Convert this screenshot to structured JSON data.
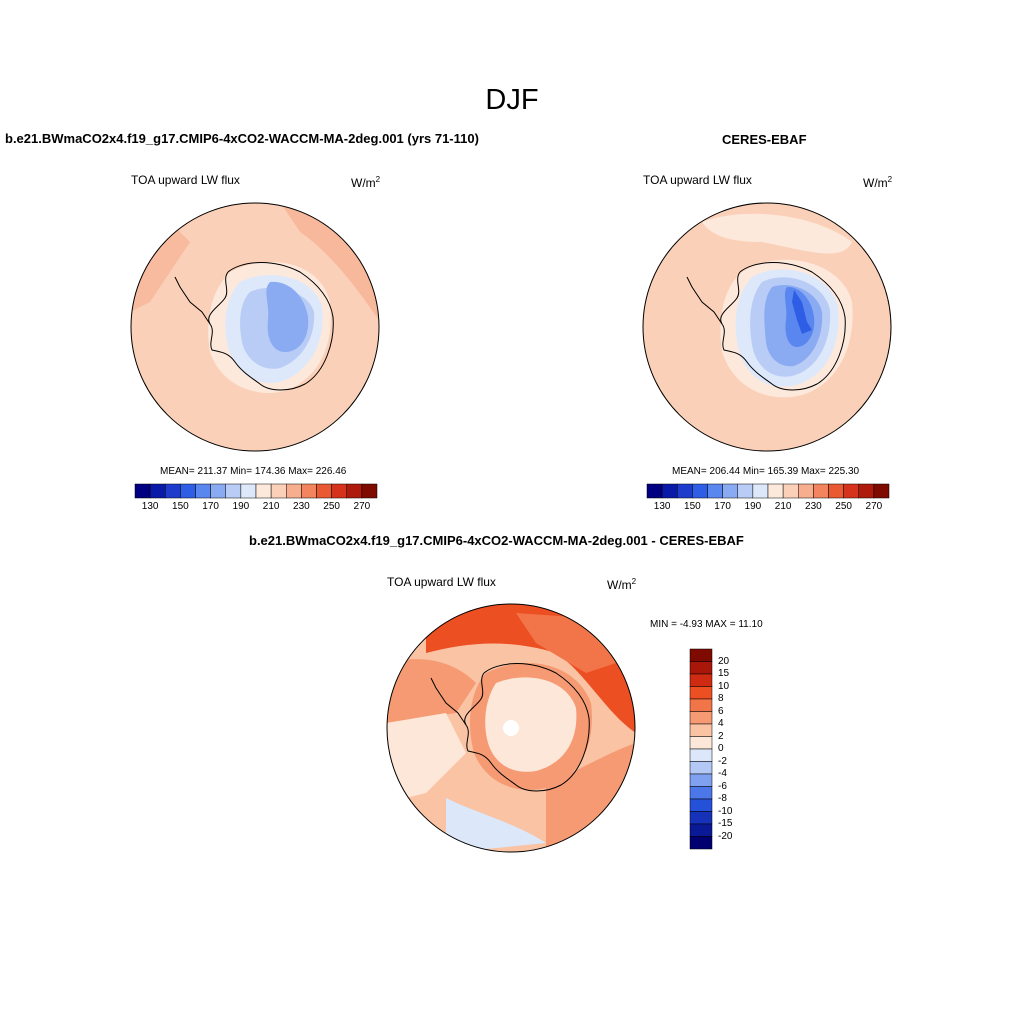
{
  "season": "DJF",
  "units": {
    "base": "W/m",
    "exp": "2"
  },
  "panels": {
    "model": {
      "title": "b.e21.BWmaCO2x4.f19_g17.CMIP6-4xCO2-WACCM-MA-2deg.001 (yrs 71-110)",
      "variable": "TOA upward LW flux",
      "stats": "MEAN= 211.37  Min= 174.36  Max= 226.46"
    },
    "obs": {
      "title": "CERES-EBAF",
      "variable": "TOA upward LW flux",
      "stats": "MEAN= 206.44  Min= 165.39  Max= 225.30"
    },
    "diff": {
      "title": "b.e21.BWmaCO2x4.f19_g17.CMIP6-4xCO2-WACCM-MA-2deg.001 - CERES-EBAF",
      "variable": "TOA upward LW flux",
      "stats": "MIN =  -4.93 MAX =  11.10"
    }
  },
  "colorbar_abs": {
    "colors": [
      "#000080",
      "#0a1aa8",
      "#1e3ccc",
      "#2f5ee6",
      "#5a86ef",
      "#8aaaf2",
      "#b8ccf6",
      "#dde8fb",
      "#fde9dc",
      "#fbd0b8",
      "#f7ae8e",
      "#f2855e",
      "#e95a33",
      "#d5341a",
      "#ae1b0c",
      "#7f0a00"
    ],
    "labels": [
      "130",
      "150",
      "170",
      "190",
      "210",
      "230",
      "250",
      "270"
    ]
  },
  "colorbar_diff": {
    "colors": [
      "#7f0a00",
      "#a8170a",
      "#cf2b12",
      "#ec4f22",
      "#f2754a",
      "#f59a72",
      "#f9c3a4",
      "#fde7d8",
      "#dce7fa",
      "#b3c8f4",
      "#7fa1ef",
      "#4c77e8",
      "#2550d8",
      "#1532b8",
      "#0a1a96",
      "#000070"
    ],
    "labels": [
      "20",
      "15",
      "10",
      "8",
      "6",
      "4",
      "2",
      "0",
      "-2",
      "-4",
      "-6",
      "-8",
      "-10",
      "-15",
      "-20"
    ]
  }
}
